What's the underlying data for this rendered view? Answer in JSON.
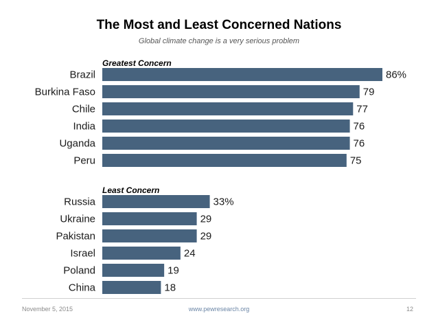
{
  "page": {
    "title": "The Most and Least Concerned Nations",
    "subtitle": "Global climate change is a very serious problem"
  },
  "footer": {
    "date": "November 5, 2015",
    "url": "www.pewresearch.org",
    "page_number": "12"
  },
  "colors": {
    "bar": "#47637e",
    "text": "#1a1a1a"
  },
  "chart_data": [
    {
      "type": "bar",
      "orientation": "horizontal",
      "title": "Greatest Concern",
      "categories": [
        "Brazil",
        "Burkina Faso",
        "Chile",
        "India",
        "Uganda",
        "Peru"
      ],
      "values": [
        86,
        79,
        77,
        76,
        76,
        75
      ],
      "value_labels": [
        "86%",
        "79",
        "77",
        "76",
        "76",
        "75"
      ],
      "xlim": [
        0,
        100
      ]
    },
    {
      "type": "bar",
      "orientation": "horizontal",
      "title": "Least Concern",
      "categories": [
        "Russia",
        "Ukraine",
        "Pakistan",
        "Israel",
        "Poland",
        "China"
      ],
      "values": [
        33,
        29,
        29,
        24,
        19,
        18
      ],
      "value_labels": [
        "33%",
        "29",
        "29",
        "24",
        "19",
        "18"
      ],
      "xlim": [
        0,
        100
      ]
    }
  ]
}
